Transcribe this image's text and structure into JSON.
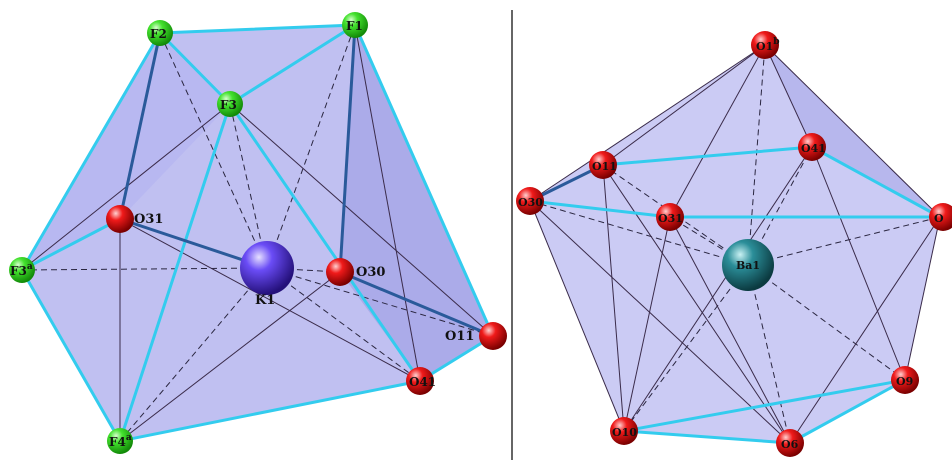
{
  "panels": [
    {
      "id": "left",
      "center_label": "K1",
      "atoms": [
        {
          "id": "F2",
          "label": "F2",
          "sup": "",
          "element": "F"
        },
        {
          "id": "F1",
          "label": "F1",
          "sup": "",
          "element": "F"
        },
        {
          "id": "F3",
          "label": "F3",
          "sup": "",
          "element": "F"
        },
        {
          "id": "O31",
          "label": "O31",
          "sup": "",
          "element": "O"
        },
        {
          "id": "F3a",
          "label": "F3",
          "sup": "a",
          "element": "F"
        },
        {
          "id": "O30",
          "label": "O30",
          "sup": "",
          "element": "O"
        },
        {
          "id": "O11",
          "label": "O11",
          "sup": "",
          "element": "O"
        },
        {
          "id": "O41",
          "label": "O41",
          "sup": "",
          "element": "O"
        },
        {
          "id": "F4a",
          "label": "F4",
          "sup": "a",
          "element": "F"
        }
      ]
    },
    {
      "id": "right",
      "center_label": "Ba1",
      "atoms": [
        {
          "id": "O1b",
          "label": "O1",
          "sup": "b",
          "element": "O"
        },
        {
          "id": "O11",
          "label": "O11",
          "sup": "",
          "element": "O"
        },
        {
          "id": "O41",
          "label": "O41",
          "sup": "",
          "element": "O"
        },
        {
          "id": "O30",
          "label": "O30",
          "sup": "",
          "element": "O"
        },
        {
          "id": "O31",
          "label": "O31",
          "sup": "",
          "element": "O"
        },
        {
          "id": "Oedge",
          "label": "O",
          "sup": "",
          "element": "O"
        },
        {
          "id": "O9",
          "label": "O9",
          "sup": "",
          "element": "O"
        },
        {
          "id": "O10",
          "label": "O10",
          "sup": "",
          "element": "O"
        },
        {
          "id": "O6",
          "label": "O6",
          "sup": "",
          "element": "O"
        }
      ]
    }
  ],
  "colors": {
    "polyhedron_fill": "#8c8ce6",
    "edge_cyan": "#33ccee",
    "edge_dark": "#3a2b4a",
    "fluorine": "#33dd22",
    "oxygen": "#ee1111",
    "potassium": "#5a3cf0",
    "barium": "#1f7f8a",
    "divider": "#000000"
  }
}
